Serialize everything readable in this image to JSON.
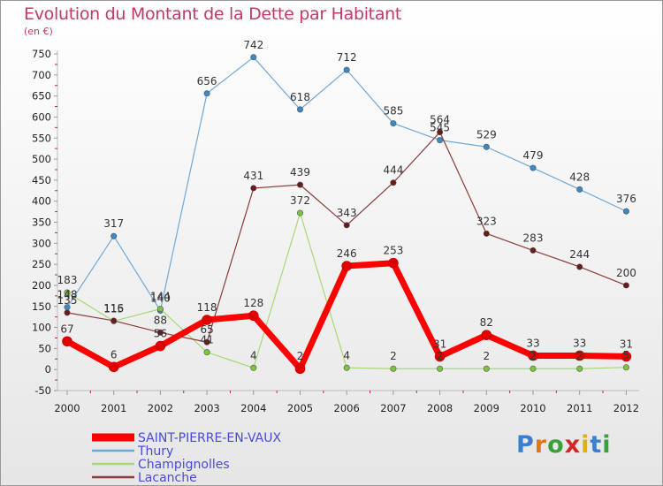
{
  "title": "Evolution du Montant de la Dette par Habitant",
  "subtitle": "(en €)",
  "logo": "Proxiti",
  "chart_data": {
    "type": "line",
    "title": "Evolution du Montant de la Dette par Habitant",
    "ylabel": "(en €)",
    "xlabel": "",
    "ylim": [
      -50,
      750
    ],
    "yticks": [
      -50,
      0,
      50,
      100,
      150,
      200,
      250,
      300,
      350,
      400,
      450,
      500,
      550,
      600,
      650,
      700,
      750
    ],
    "grid": false,
    "legend_position": "bottom-left",
    "x": [
      "2000",
      "2001",
      "2002",
      "2003",
      "2004",
      "2005",
      "2006",
      "2007",
      "2008",
      "2009",
      "2010",
      "2011",
      "2012"
    ],
    "series": [
      {
        "name": "Thury",
        "color": "#6fa8d6",
        "marker": "#3a8ac8",
        "width": 1.2,
        "values": [
          148,
          317,
          140,
          656,
          742,
          618,
          712,
          585,
          545,
          529,
          479,
          428,
          376
        ],
        "labels": [
          "148",
          "317",
          "140",
          "656",
          "742",
          "618",
          "712",
          "585",
          "545",
          "529",
          "479",
          "428",
          "376"
        ]
      },
      {
        "name": "Champignolles",
        "color": "#a6d878",
        "marker": "#79c73a",
        "width": 1.2,
        "values": [
          183,
          115,
          144,
          41,
          4,
          372,
          4,
          2,
          2,
          2,
          2,
          2,
          5
        ],
        "labels": [
          "183",
          "115",
          "144",
          "41",
          "4",
          "372",
          "4",
          "2",
          "2",
          "2",
          "2",
          "2",
          "5"
        ]
      },
      {
        "name": "Lacanche",
        "color": "#8a3a3a",
        "marker": "#6b1a1a",
        "width": 1.2,
        "values": [
          135,
          116,
          88,
          65,
          431,
          439,
          343,
          444,
          564,
          323,
          283,
          244,
          200
        ],
        "labels": [
          "135",
          "116",
          "88",
          "65",
          "431",
          "439",
          "343",
          "444",
          "564",
          "323",
          "283",
          "244",
          "200"
        ]
      },
      {
        "name": "SAINT-PIERRE-EN-VAUX",
        "color": "#ff0000",
        "marker": "#e00000",
        "width": 7,
        "values": [
          67,
          6,
          56,
          118,
          128,
          2,
          246,
          253,
          31,
          82,
          33,
          33,
          31
        ],
        "labels": [
          "67",
          "6",
          "56",
          "118",
          "128",
          "2",
          "246",
          "253",
          "31",
          "82",
          "33",
          "33",
          "31"
        ]
      }
    ]
  },
  "legend": [
    {
      "name": "SAINT-PIERRE-EN-VAUX",
      "color": "#ff0000"
    },
    {
      "name": "Thury",
      "color": "#6fa8d6"
    },
    {
      "name": "Champignolles",
      "color": "#a6d878"
    },
    {
      "name": "Lacanche",
      "color": "#8a3a3a"
    }
  ]
}
